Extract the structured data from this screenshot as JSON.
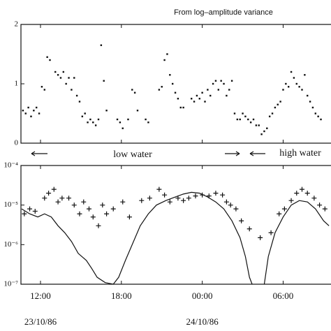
{
  "chart_data": [
    {
      "type": "scatter",
      "title": "From log–amplitude variance",
      "x": [
        10.7,
        10.9,
        11.1,
        11.3,
        11.5,
        11.7,
        11.9,
        12.1,
        12.3,
        12.5,
        12.7,
        13.1,
        13.3,
        13.5,
        13.7,
        13.9,
        14.1,
        14.3,
        14.5,
        14.7,
        14.9,
        15.1,
        15.3,
        15.5,
        15.7,
        15.9,
        16.1,
        16.3,
        16.5,
        16.7,
        16.9,
        17.7,
        17.9,
        18.1,
        18.5,
        18.8,
        19.0,
        19.2,
        19.8,
        20.0,
        20.8,
        21.0,
        21.2,
        21.4,
        21.6,
        21.8,
        22.0,
        22.2,
        22.4,
        22.6,
        23.2,
        23.4,
        23.6,
        23.8,
        24.0,
        24.2,
        24.4,
        24.6,
        24.8,
        25.0,
        25.2,
        25.4,
        25.6,
        25.8,
        26.0,
        26.2,
        26.4,
        26.6,
        26.8,
        27.0,
        27.2,
        27.4,
        27.6,
        27.8,
        28.0,
        28.2,
        28.4,
        28.6,
        28.8,
        29.0,
        29.2,
        29.4,
        29.6,
        29.8,
        30.0,
        30.2,
        30.4,
        30.6,
        30.8,
        31.0,
        31.2,
        31.4,
        31.6,
        31.8,
        32.0,
        32.2,
        32.4,
        32.6,
        32.8
      ],
      "values": [
        0.55,
        0.5,
        0.6,
        0.45,
        0.55,
        0.6,
        0.5,
        0.95,
        0.9,
        1.45,
        1.4,
        1.2,
        1.15,
        1.1,
        1.2,
        1.0,
        1.1,
        0.9,
        1.1,
        0.8,
        0.7,
        0.45,
        0.5,
        0.35,
        0.4,
        0.35,
        0.3,
        0.4,
        1.65,
        1.05,
        0.55,
        0.4,
        0.35,
        0.25,
        0.4,
        0.9,
        0.85,
        0.55,
        0.4,
        0.35,
        0.9,
        0.95,
        1.4,
        1.5,
        1.15,
        1.0,
        0.85,
        0.75,
        0.6,
        0.6,
        0.75,
        0.7,
        0.8,
        0.75,
        0.85,
        0.7,
        0.9,
        0.8,
        1.0,
        1.05,
        0.9,
        1.05,
        1.0,
        0.8,
        0.9,
        1.05,
        0.5,
        0.4,
        0.4,
        0.5,
        0.45,
        0.4,
        0.35,
        0.4,
        0.3,
        0.3,
        0.15,
        0.2,
        0.25,
        0.45,
        0.5,
        0.6,
        0.65,
        0.7,
        0.9,
        1.0,
        0.95,
        1.2,
        1.1,
        1.0,
        0.95,
        0.9,
        1.15,
        0.8,
        0.7,
        0.6,
        0.5,
        0.45,
        0.4
      ],
      "xlim": [
        10.55,
        33.55
      ],
      "ylim": [
        0,
        2
      ],
      "yticks": [
        0,
        1,
        2
      ],
      "color": "#111"
    },
    {
      "type": "line",
      "log_y": true,
      "annotations": [
        "low water",
        "high water"
      ],
      "series": [
        {
          "style": "markers",
          "color": "#111",
          "x": [
            10.8,
            11.2,
            11.6,
            12.3,
            12.6,
            13.0,
            13.3,
            13.6,
            14.1,
            14.5,
            14.9,
            15.2,
            15.6,
            15.9,
            16.3,
            16.6,
            16.9,
            17.4,
            18.1,
            18.6,
            19.5,
            20.1,
            20.8,
            21.2,
            21.6,
            22.2,
            22.6,
            23.0,
            23.5,
            24.0,
            24.5,
            25.0,
            25.5,
            25.8,
            26.1,
            26.5,
            26.9,
            27.5,
            28.3,
            29.1,
            29.7,
            30.1,
            30.6,
            31.0,
            31.4,
            31.8,
            32.3,
            32.7,
            33.1
          ],
          "values": [
            6e-06,
            8e-06,
            7e-06,
            1.5e-05,
            2e-05,
            2.5e-05,
            1.2e-05,
            1.5e-05,
            1.5e-05,
            1e-05,
            6e-06,
            1.2e-05,
            8e-06,
            5e-06,
            3e-06,
            1e-05,
            6e-06,
            8e-06,
            1.2e-05,
            5e-06,
            1.3e-05,
            1.5e-05,
            2.5e-05,
            1.8e-05,
            1.2e-05,
            1.5e-05,
            1.3e-05,
            1.5e-05,
            1.7e-05,
            1.8e-05,
            1.7e-05,
            2e-05,
            1.8e-05,
            1.2e-05,
            1e-05,
            8e-06,
            4e-06,
            2.5e-06,
            1.5e-06,
            2e-06,
            6e-06,
            8e-06,
            1.3e-05,
            2e-05,
            2.5e-05,
            2e-05,
            1.5e-05,
            1e-05,
            8e-06
          ]
        },
        {
          "style": "line",
          "color": "#111",
          "x": [
            10.6,
            11.2,
            11.8,
            12.3,
            12.8,
            13.3,
            13.8,
            14.3,
            14.8,
            15.4,
            15.8,
            16.2,
            16.8,
            17.4,
            17.8,
            18.3,
            18.8,
            19.4,
            20.0,
            20.6,
            21.3,
            22.0,
            22.6,
            23.2,
            23.8,
            24.4,
            25.0,
            25.6,
            26.2,
            26.8,
            27.2,
            27.5,
            27.7,
            28.1,
            28.6,
            28.9,
            29.4,
            30.0,
            30.6,
            31.2,
            31.8,
            32.4,
            33.0,
            33.4
          ],
          "values": [
            8e-06,
            6e-06,
            5e-06,
            6e-06,
            5e-06,
            3e-06,
            2e-06,
            1.2e-06,
            6e-07,
            4e-07,
            2.5e-07,
            1.5e-07,
            1.1e-07,
            1e-07,
            1.5e-07,
            4e-07,
            1e-06,
            3e-06,
            6e-06,
            1e-05,
            1.3e-05,
            1.6e-05,
            1.9e-05,
            2.1e-05,
            2e-05,
            1.6e-05,
            1.2e-05,
            8e-06,
            4e-06,
            1.5e-06,
            5e-07,
            1.5e-07,
            1e-07,
            null,
            1e-07,
            5e-07,
            2e-06,
            5e-06,
            1e-05,
            1.3e-05,
            1.2e-05,
            8e-06,
            4e-06,
            3e-06
          ]
        }
      ],
      "xlim": [
        10.55,
        33.55
      ],
      "xticks": [
        {
          "value": 12,
          "label": "12:00"
        },
        {
          "value": 18,
          "label": "18:00"
        },
        {
          "value": 24,
          "label": "00:00"
        },
        {
          "value": 30,
          "label": "06:00"
        }
      ],
      "date_labels": [
        {
          "value": 12,
          "label": "23/10/86"
        },
        {
          "value": 24,
          "label": "24/10/86"
        }
      ],
      "ylim": [
        1e-07,
        0.0001
      ],
      "yticks": [
        {
          "value": 1e-07,
          "label": "10⁻⁷"
        },
        {
          "value": 1e-06,
          "label": "10⁻⁶"
        },
        {
          "value": 1e-05,
          "label": "10⁻⁵"
        },
        {
          "value": 0.0001,
          "label": "10⁻⁴"
        }
      ]
    }
  ]
}
